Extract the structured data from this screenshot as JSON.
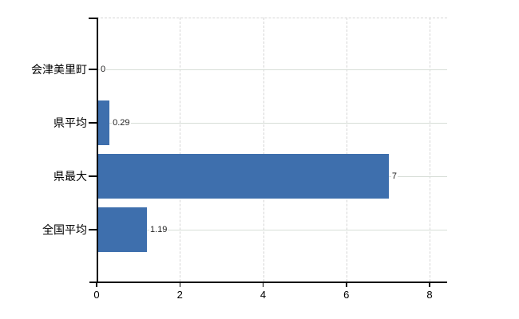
{
  "chart_data": {
    "type": "bar",
    "orientation": "horizontal",
    "title": "",
    "xlabel": "",
    "ylabel": "",
    "categories": [
      "会津美里町",
      "県平均",
      "県最大",
      "全国平均"
    ],
    "values": [
      0,
      0.29,
      7,
      1.19
    ],
    "value_labels": [
      "0",
      "0.29",
      "7",
      "1.19"
    ],
    "x_ticks": [
      0,
      2,
      4,
      6,
      8
    ],
    "x_tick_labels": [
      "0",
      "2",
      "4",
      "6",
      "8"
    ],
    "xlim": [
      0,
      8.42
    ],
    "grid": true,
    "legend": false
  },
  "colors": {
    "bar": "#3e6fad",
    "axis": "#000000",
    "gridline_horizontal": "#d7ded7",
    "gridline_vertical": "#d5d5d5",
    "label_text": "#000000",
    "value_text": "#1f1f1f",
    "background": "#ffffff"
  }
}
